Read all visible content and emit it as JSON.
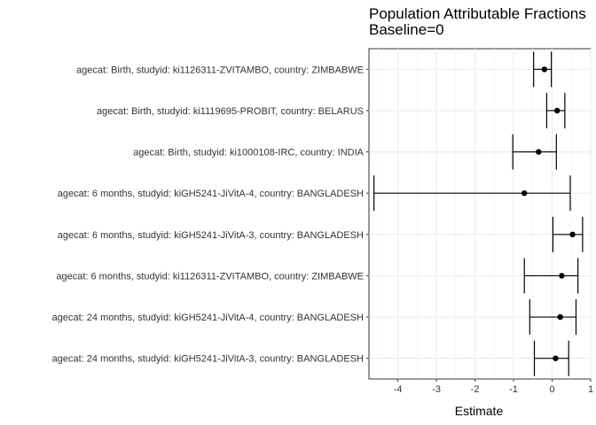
{
  "chart_data": {
    "type": "forest",
    "title_lines": [
      "Population Attributable Fractions",
      "Baseline=0"
    ],
    "xlabel": "Estimate",
    "ylabel": "",
    "xlim": [
      -4.75,
      1.0
    ],
    "x_ticks": [
      -4,
      -3,
      -2,
      -1,
      0,
      1
    ],
    "grid": true,
    "rows": [
      {
        "label": "agecat: Birth, studyid: ki1126311-ZVITAMBO, country: ZIMBABWE",
        "estimate": -0.2,
        "lower": -0.48,
        "upper": -0.02
      },
      {
        "label": "agecat: Birth, studyid: ki1119695-PROBIT, country: BELARUS",
        "estimate": 0.13,
        "lower": -0.14,
        "upper": 0.33
      },
      {
        "label": "agecat: Birth, studyid: ki1000108-IRC, country: INDIA",
        "estimate": -0.35,
        "lower": -1.02,
        "upper": 0.11
      },
      {
        "label": "agecat: 6 months, studyid: kiGH5241-JiVitA-4, country: BANGLADESH",
        "estimate": -0.72,
        "lower": -4.62,
        "upper": 0.47
      },
      {
        "label": "agecat: 6 months, studyid: kiGH5241-JiVitA-3, country: BANGLADESH",
        "estimate": 0.53,
        "lower": 0.02,
        "upper": 0.79
      },
      {
        "label": "agecat: 6 months, studyid: ki1126311-ZVITAMBO, country: ZIMBABWE",
        "estimate": 0.25,
        "lower": -0.72,
        "upper": 0.67
      },
      {
        "label": "agecat: 24 months, studyid: kiGH5241-JiVitA-4, country: BANGLADESH",
        "estimate": 0.21,
        "lower": -0.58,
        "upper": 0.62
      },
      {
        "label": "agecat: 24 months, studyid: kiGH5241-JiVitA-3, country: BANGLADESH",
        "estimate": 0.09,
        "lower": -0.46,
        "upper": 0.43
      }
    ]
  }
}
